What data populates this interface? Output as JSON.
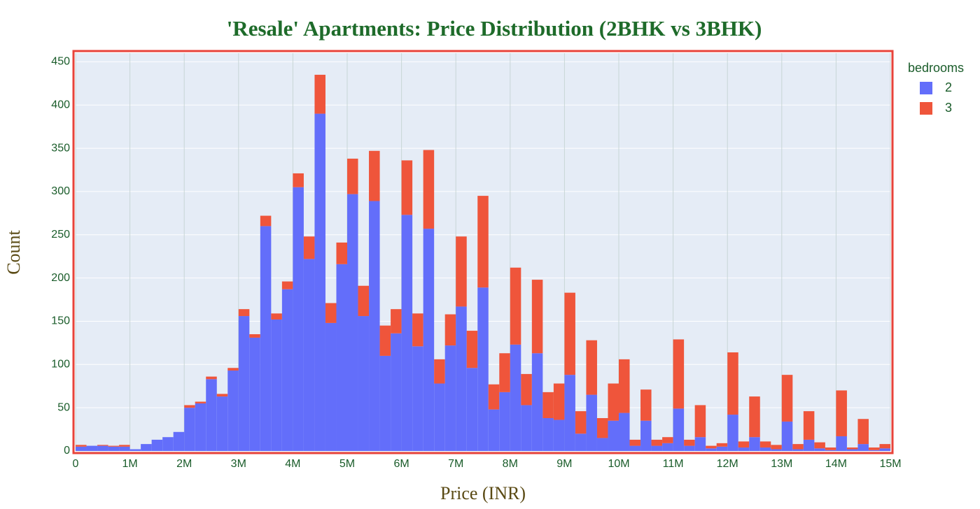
{
  "chart_data": {
    "type": "histogram",
    "barmode": "stack",
    "title": "'Resale' Apartments: Price Distribution (2BHK vs 3BHK)",
    "x_label": "Price (INR)",
    "y_label": "Count",
    "legend_title": "bedrooms",
    "legend": "right",
    "bins": [
      0,
      200000,
      400000,
      600000,
      800000,
      1000000,
      1200000,
      1400000,
      1600000,
      1800000,
      2000000,
      2200000,
      2400000,
      2600000,
      2800000,
      3000000,
      3200000,
      3400000,
      3600000,
      3800000,
      4000000,
      4200000,
      4400000,
      4600000,
      4800000,
      5000000,
      5200000,
      5400000,
      5600000,
      5800000,
      6000000,
      6200000,
      6400000,
      6600000,
      6800000,
      7000000,
      7200000,
      7400000,
      7600000,
      7800000,
      8000000,
      8200000,
      8400000,
      8600000,
      8800000,
      9000000,
      9200000,
      9400000,
      9600000,
      9800000,
      10000000,
      10200000,
      10400000,
      10600000,
      10800000,
      11000000,
      11200000,
      11400000,
      11600000,
      11800000,
      12000000,
      12200000,
      12400000,
      12600000,
      12800000,
      13000000,
      13200000,
      13400000,
      13600000,
      13800000,
      14000000,
      14200000,
      14400000,
      14600000,
      14800000,
      15000000
    ],
    "series": [
      {
        "name": "2",
        "color": "#636efa",
        "values": [
          5,
          6,
          6,
          5,
          5,
          2,
          8,
          13,
          16,
          22,
          50,
          55,
          83,
          63,
          93,
          156,
          131,
          260,
          152,
          187,
          305,
          222,
          390,
          148,
          216,
          297,
          156,
          289,
          110,
          136,
          273,
          121,
          257,
          78,
          122,
          167,
          96,
          189,
          48,
          68,
          123,
          53,
          113,
          38,
          36,
          88,
          20,
          65,
          15,
          35,
          44,
          6,
          35,
          6,
          9,
          49,
          6,
          16,
          3,
          5,
          42,
          4,
          16,
          4,
          2,
          34,
          2,
          13,
          3,
          1,
          17,
          2,
          8,
          1,
          3
        ]
      },
      {
        "name": "3",
        "color": "#ef553b",
        "values": [
          2,
          0,
          1,
          1,
          2,
          0,
          0,
          0,
          0,
          0,
          3,
          2,
          3,
          3,
          3,
          8,
          4,
          12,
          7,
          9,
          16,
          26,
          45,
          23,
          25,
          41,
          35,
          58,
          35,
          28,
          63,
          38,
          91,
          28,
          36,
          81,
          43,
          106,
          29,
          45,
          89,
          36,
          85,
          30,
          42,
          95,
          26,
          63,
          23,
          43,
          62,
          7,
          36,
          7,
          7,
          80,
          7,
          37,
          3,
          4,
          72,
          7,
          47,
          7,
          5,
          54,
          6,
          33,
          7,
          3,
          53,
          2,
          29,
          3,
          5
        ]
      }
    ],
    "xlim": [
      0,
      15000000
    ],
    "xticks": [
      0,
      {
        "value": 1000000,
        "label": "1M"
      },
      {
        "value": 2000000,
        "label": "2M"
      },
      {
        "value": 3000000,
        "label": "3M"
      },
      {
        "value": 4000000,
        "label": "4M"
      },
      {
        "value": 5000000,
        "label": "5M"
      },
      {
        "value": 6000000,
        "label": "6M"
      },
      {
        "value": 7000000,
        "label": "7M"
      },
      {
        "value": 8000000,
        "label": "8M"
      },
      {
        "value": 9000000,
        "label": "9M"
      },
      {
        "value": 10000000,
        "label": "10M"
      },
      {
        "value": 11000000,
        "label": "11M"
      },
      {
        "value": 12000000,
        "label": "12M"
      },
      {
        "value": 13000000,
        "label": "13M"
      },
      {
        "value": 14000000,
        "label": "14M"
      },
      {
        "value": 15000000,
        "label": "15M"
      }
    ],
    "ylim": [
      0,
      460
    ],
    "yticks": [
      0,
      50,
      100,
      150,
      200,
      250,
      300,
      350,
      400,
      450
    ],
    "grid": true,
    "plot_background": "#e5ecf6",
    "frame_color": "#e8433a"
  }
}
